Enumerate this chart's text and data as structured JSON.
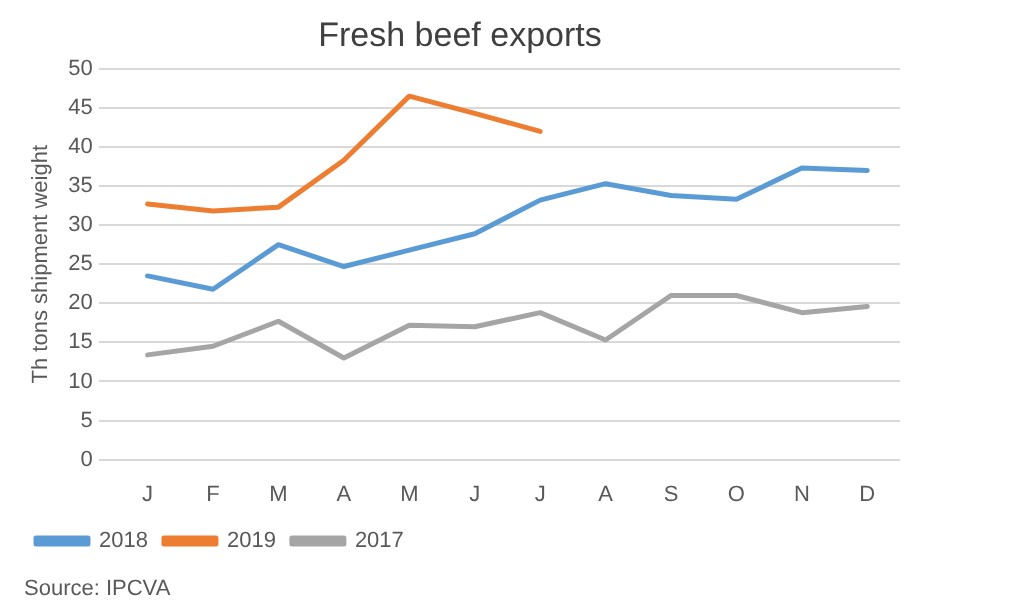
{
  "chart_data": {
    "type": "line",
    "title": "Fresh beef exports",
    "ylabel": "Th tons shipment weight",
    "categories": [
      "J",
      "F",
      "M",
      "A",
      "M",
      "J",
      "J",
      "A",
      "S",
      "O",
      "N",
      "D"
    ],
    "series": [
      {
        "name": "2018",
        "color": "#5b9bd5",
        "values": [
          23.5,
          21.8,
          27.5,
          24.7,
          26.8,
          28.9,
          33.2,
          35.3,
          33.8,
          33.3,
          37.3,
          37.0
        ]
      },
      {
        "name": "2019",
        "color": "#ed7d31",
        "values": [
          32.7,
          31.8,
          32.3,
          38.3,
          46.5,
          44.3,
          42.0,
          null,
          null,
          null,
          null,
          null
        ]
      },
      {
        "name": "2017",
        "color": "#a5a5a5",
        "values": [
          13.4,
          14.5,
          17.7,
          13.0,
          17.2,
          17.0,
          18.8,
          15.3,
          21.0,
          21.0,
          18.8,
          19.6
        ]
      }
    ],
    "ylim": [
      0,
      50
    ],
    "yticks": [
      0,
      5,
      10,
      15,
      20,
      25,
      30,
      35,
      40,
      45,
      50
    ],
    "grid": "y",
    "legend": "bottom left",
    "marker": "none",
    "line_style": "solid",
    "annotations": [
      "Source: IPCVA"
    ]
  }
}
